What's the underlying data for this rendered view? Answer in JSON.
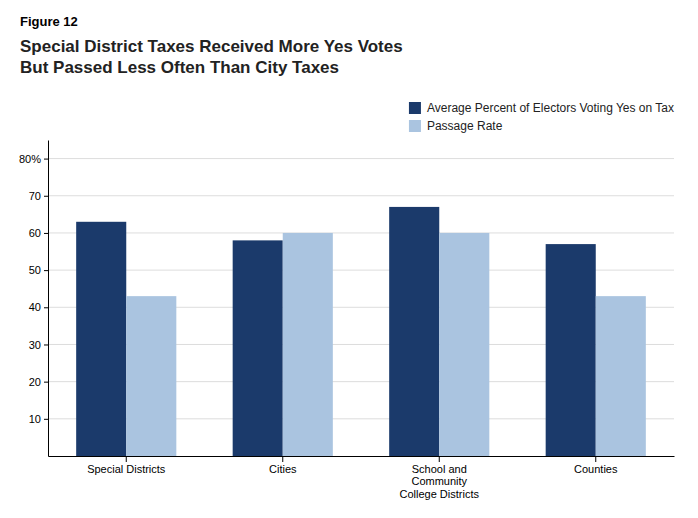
{
  "chart_data": {
    "type": "bar",
    "annotations": [
      "Figure 12"
    ],
    "title": "Special District Taxes Received More Yes Votes\nBut Passed Less Often Than City Taxes",
    "categories": [
      "Special Districts",
      "Cities",
      "School and\nCommunity\nCollege Districts",
      "Counties"
    ],
    "series": [
      {
        "name": "Average Percent of Electors Voting Yes on Tax",
        "color": "#1b3a6b",
        "values": [
          63,
          58,
          67,
          57
        ]
      },
      {
        "name": "Passage Rate",
        "color": "#aac4e0",
        "values": [
          43,
          60,
          60,
          43
        ]
      }
    ],
    "ylim": [
      0,
      85
    ],
    "yticks": [
      10,
      20,
      30,
      40,
      50,
      60,
      70,
      {
        "value": 80,
        "label": "80%"
      }
    ],
    "grid": true,
    "legend": "upper right"
  }
}
